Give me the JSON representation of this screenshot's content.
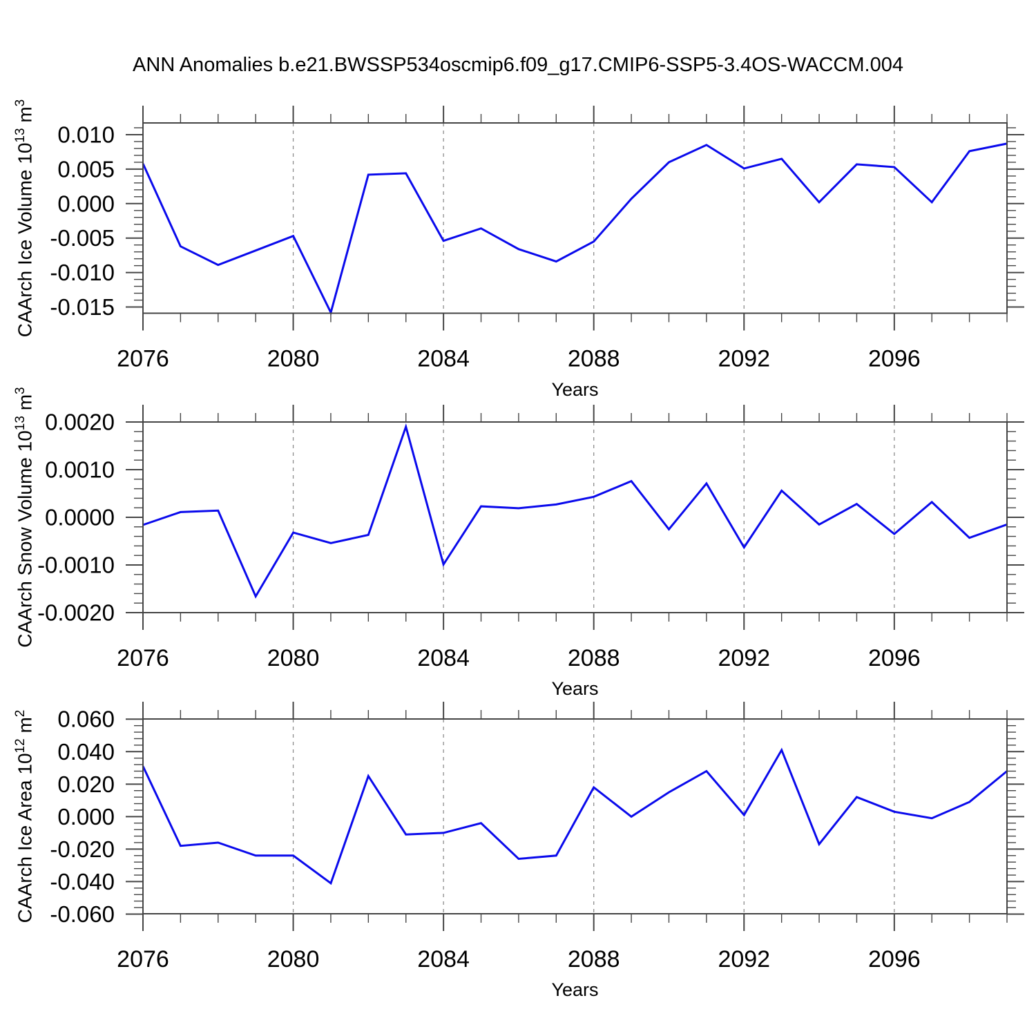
{
  "title": "ANN Anomalies b.e21.BWSSP534oscmip6.f09_g17.CMIP6-SSP5-3.4OS-WACCM.004",
  "colors": {
    "line": "#0a0aec",
    "frame": "#444444",
    "grid": "#8c8c8c",
    "text": "#000000"
  },
  "chart_data": [
    {
      "type": "line",
      "ylabel": {
        "prefix": "CAArch Ice Volume 10",
        "sup1": "13",
        "mid": " m",
        "sup2": "3"
      },
      "xlabel": "Years",
      "x": [
        2076,
        2077,
        2078,
        2079,
        2080,
        2081,
        2082,
        2083,
        2084,
        2085,
        2086,
        2087,
        2088,
        2089,
        2090,
        2091,
        2092,
        2093,
        2094,
        2095,
        2096,
        2097,
        2098,
        2099
      ],
      "values": [
        0.0058,
        -0.0062,
        -0.0089,
        -0.0068,
        -0.0047,
        -0.0158,
        0.0042,
        0.0044,
        -0.0054,
        -0.0036,
        -0.0066,
        -0.0084,
        -0.0055,
        0.0007,
        0.006,
        0.0085,
        0.0051,
        0.0065,
        0.0002,
        0.0057,
        0.0053,
        0.0002,
        0.0076,
        0.0087
      ],
      "xlim": [
        2076,
        2099
      ],
      "ylim": [
        -0.0159,
        0.0117
      ],
      "xtick_labels": [
        "2076",
        "2080",
        "2084",
        "2088",
        "2092",
        "2096"
      ],
      "xtick_values": [
        2076,
        2080,
        2084,
        2088,
        2092,
        2096
      ],
      "ytick_labels": [
        "0.010",
        "0.005",
        "0.000",
        "-0.005",
        "-0.010",
        "-0.015"
      ],
      "ytick_values": [
        0.01,
        0.005,
        0.0,
        -0.005,
        -0.01,
        -0.015
      ],
      "y_minor_step": 0.001,
      "grid_x": [
        2080,
        2084,
        2088,
        2092,
        2096
      ]
    },
    {
      "type": "line",
      "ylabel": {
        "prefix": "CAArch Snow Volume 10",
        "sup1": "13",
        "mid": " m",
        "sup2": "3"
      },
      "xlabel": "Years",
      "x": [
        2076,
        2077,
        2078,
        2079,
        2080,
        2081,
        2082,
        2083,
        2084,
        2085,
        2086,
        2087,
        2088,
        2089,
        2090,
        2091,
        2092,
        2093,
        2094,
        2095,
        2096,
        2097,
        2098,
        2099
      ],
      "values": [
        -0.00016,
        0.00011,
        0.00014,
        -0.00166,
        -0.00032,
        -0.00054,
        -0.00037,
        0.0019,
        -0.00099,
        0.00023,
        0.00019,
        0.00027,
        0.00043,
        0.00076,
        -0.00025,
        0.00071,
        -0.00063,
        0.00056,
        -0.00015,
        0.00028,
        -0.00035,
        0.00032,
        -0.00043,
        -0.00015
      ],
      "xlim": [
        2076,
        2099
      ],
      "ylim": [
        -0.002,
        0.002
      ],
      "xtick_labels": [
        "2076",
        "2080",
        "2084",
        "2088",
        "2092",
        "2096"
      ],
      "xtick_values": [
        2076,
        2080,
        2084,
        2088,
        2092,
        2096
      ],
      "ytick_labels": [
        "0.0020",
        "0.0010",
        "0.0000",
        "-0.0010",
        "-0.0020"
      ],
      "ytick_values": [
        0.002,
        0.001,
        0.0,
        -0.001,
        -0.002
      ],
      "y_minor_step": 0.0002,
      "grid_x": [
        2080,
        2084,
        2088,
        2092,
        2096
      ]
    },
    {
      "type": "line",
      "ylabel": {
        "prefix": "CAArch Ice Area 10",
        "sup1": "12",
        "mid": " m",
        "sup2": "2"
      },
      "xlabel": "Years",
      "x": [
        2076,
        2077,
        2078,
        2079,
        2080,
        2081,
        2082,
        2083,
        2084,
        2085,
        2086,
        2087,
        2088,
        2089,
        2090,
        2091,
        2092,
        2093,
        2094,
        2095,
        2096,
        2097,
        2098,
        2099
      ],
      "values": [
        0.031,
        -0.018,
        -0.016,
        -0.024,
        -0.024,
        -0.041,
        0.025,
        -0.011,
        -0.01,
        -0.004,
        -0.026,
        -0.024,
        0.018,
        0.0,
        0.015,
        0.028,
        0.001,
        0.041,
        -0.017,
        0.012,
        0.003,
        -0.001,
        0.009,
        0.028
      ],
      "xlim": [
        2076,
        2099
      ],
      "ylim": [
        -0.0598,
        0.0601
      ],
      "xtick_labels": [
        "2076",
        "2080",
        "2084",
        "2088",
        "2092",
        "2096"
      ],
      "xtick_values": [
        2076,
        2080,
        2084,
        2088,
        2092,
        2096
      ],
      "ytick_labels": [
        "0.060",
        "0.040",
        "0.020",
        "0.000",
        "-0.020",
        "-0.040",
        "-0.060"
      ],
      "ytick_values": [
        0.06,
        0.04,
        0.02,
        0.0,
        -0.02,
        -0.04,
        -0.06
      ],
      "y_minor_step": 0.004,
      "grid_x": [
        2080,
        2084,
        2088,
        2092,
        2096
      ]
    }
  ]
}
